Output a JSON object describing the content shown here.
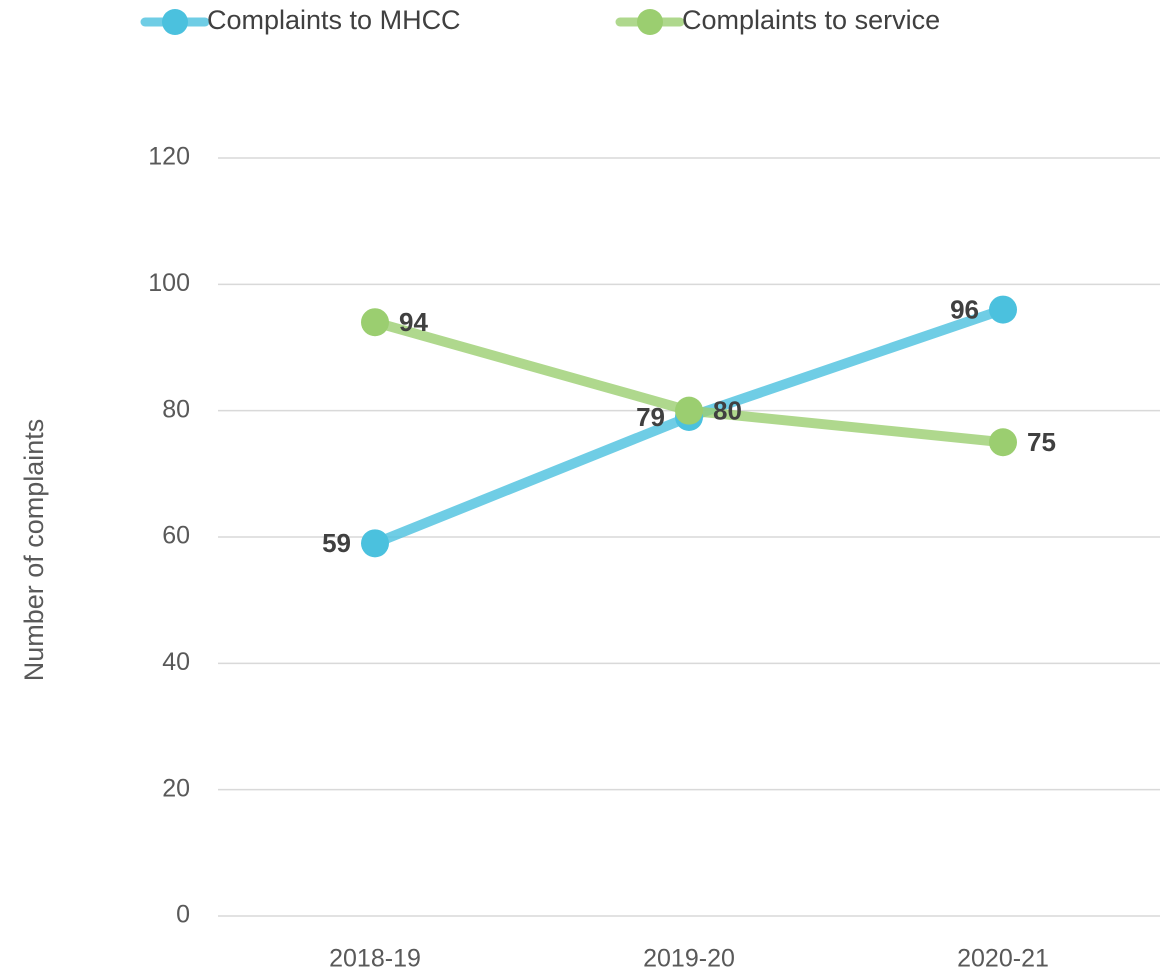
{
  "chart_data": {
    "type": "line",
    "categories": [
      "2018-19",
      "2019-20",
      "2020-21"
    ],
    "series": [
      {
        "name": "Complaints to MHCC",
        "color": "#4bc1de",
        "values": [
          59,
          79,
          96
        ]
      },
      {
        "name": "Complaints to service",
        "color": "#9bce70",
        "values": [
          94,
          80,
          75
        ]
      }
    ],
    "ylabel": "Number of complaints",
    "ylim": [
      0,
      120
    ],
    "yticks": [
      0,
      20,
      40,
      60,
      80,
      100,
      120
    ],
    "grid": true,
    "legend": "top-left"
  }
}
